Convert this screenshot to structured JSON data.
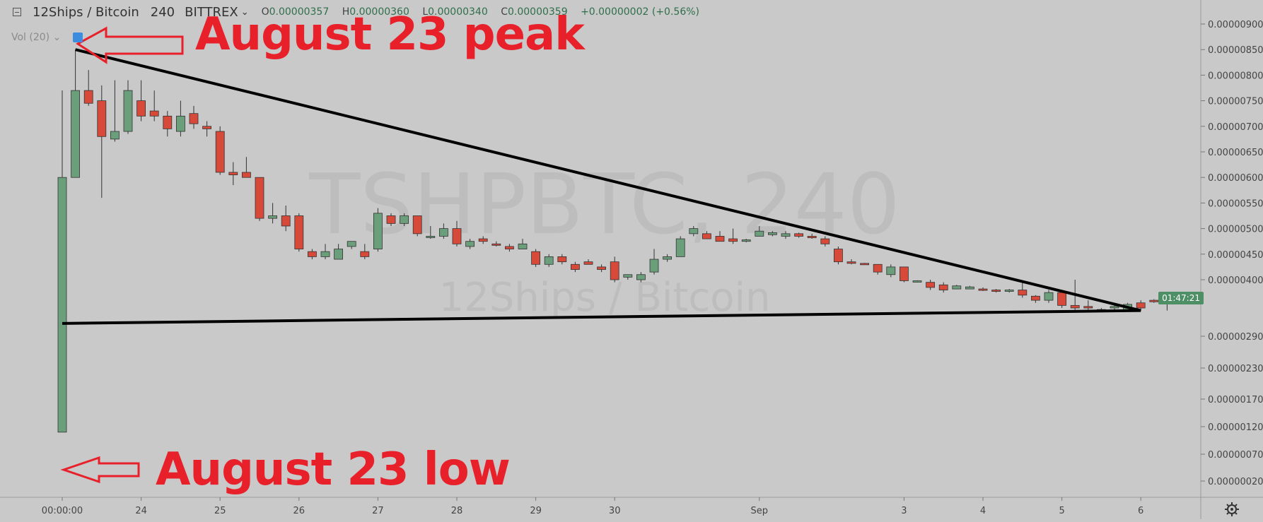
{
  "header": {
    "symbol": "12Ships / Bitcoin",
    "interval": "240",
    "exchange": "BITTREX",
    "ohlc": {
      "open_label": "O",
      "open": "0.00000357",
      "high_label": "H",
      "high": "0.00000360",
      "low_label": "L",
      "low": "0.00000340",
      "close_label": "C",
      "close": "0.00000359",
      "change": "+0.00000002 (+0.56%)"
    },
    "volume_label": "Vol (20)"
  },
  "watermark": {
    "ticker": "TSHPBTC, 240",
    "name": "12Ships / Bitcoin"
  },
  "annotations": {
    "peak": "August 23 peak",
    "low": "August 23 low"
  },
  "countdown": "01:47:21",
  "colors": {
    "up": "#6b9f7b",
    "down": "#d74a3a",
    "background": "#c9c9c9",
    "annotation": "#e8202a",
    "trendline": "#000000"
  },
  "icons": {
    "settings": "gear-icon",
    "collapse": "minus-box-icon"
  },
  "chart_data": {
    "type": "candlestick",
    "title": "",
    "x_tick_labels": [
      "00:00:00",
      "24",
      "25",
      "26",
      "27",
      "28",
      "29",
      "30",
      "Sep",
      "3",
      "4",
      "5",
      "6"
    ],
    "x_tick_candle_index": [
      0,
      6,
      12,
      18,
      24,
      30,
      36,
      42,
      53,
      64,
      70,
      76,
      82
    ],
    "y_tick_labels": [
      "0.00000900",
      "0.00000850",
      "0.00000800",
      "0.00000750",
      "0.00000700",
      "0.00000650",
      "0.00000600",
      "0.00000550",
      "0.00000500",
      "0.00000450",
      "0.00000400",
      "0.00000290",
      "0.00000230",
      "0.00000170",
      "0.00000120",
      "0.00000070",
      "0.00000020"
    ],
    "y_tick_values": [
      9.0,
      8.5,
      8.0,
      7.5,
      7.0,
      6.5,
      6.0,
      5.5,
      5.0,
      4.5,
      4.0,
      2.9,
      2.3,
      1.7,
      1.2,
      0.7,
      0.2
    ],
    "value_unit": "1e-8 BTC (satoshi)",
    "candles": [
      {
        "o": 1.1,
        "h": 7.7,
        "l": 1.1,
        "c": 6.0
      },
      {
        "o": 6.0,
        "h": 8.5,
        "l": 6.0,
        "c": 7.7
      },
      {
        "o": 7.7,
        "h": 8.1,
        "l": 7.4,
        "c": 7.45
      },
      {
        "o": 7.5,
        "h": 7.8,
        "l": 5.6,
        "c": 6.8
      },
      {
        "o": 6.75,
        "h": 7.9,
        "l": 6.7,
        "c": 6.9
      },
      {
        "o": 6.9,
        "h": 7.9,
        "l": 6.85,
        "c": 7.7
      },
      {
        "o": 7.5,
        "h": 7.9,
        "l": 7.1,
        "c": 7.2
      },
      {
        "o": 7.3,
        "h": 7.7,
        "l": 7.1,
        "c": 7.2
      },
      {
        "o": 7.2,
        "h": 7.3,
        "l": 6.8,
        "c": 6.95
      },
      {
        "o": 6.9,
        "h": 7.5,
        "l": 6.8,
        "c": 7.2
      },
      {
        "o": 7.25,
        "h": 7.4,
        "l": 6.95,
        "c": 7.05
      },
      {
        "o": 7.0,
        "h": 7.1,
        "l": 6.8,
        "c": 6.95
      },
      {
        "o": 6.9,
        "h": 7.0,
        "l": 6.05,
        "c": 6.1
      },
      {
        "o": 6.1,
        "h": 6.3,
        "l": 5.85,
        "c": 6.05
      },
      {
        "o": 6.1,
        "h": 6.4,
        "l": 6.0,
        "c": 6.0
      },
      {
        "o": 6.0,
        "h": 6.0,
        "l": 5.15,
        "c": 5.2
      },
      {
        "o": 5.2,
        "h": 5.5,
        "l": 5.1,
        "c": 5.25
      },
      {
        "o": 5.25,
        "h": 5.45,
        "l": 4.95,
        "c": 5.05
      },
      {
        "o": 5.25,
        "h": 5.3,
        "l": 4.55,
        "c": 4.6
      },
      {
        "o": 4.55,
        "h": 4.6,
        "l": 4.4,
        "c": 4.45
      },
      {
        "o": 4.45,
        "h": 4.7,
        "l": 4.4,
        "c": 4.55
      },
      {
        "o": 4.4,
        "h": 4.7,
        "l": 4.4,
        "c": 4.6
      },
      {
        "o": 4.65,
        "h": 4.75,
        "l": 4.6,
        "c": 4.75
      },
      {
        "o": 4.55,
        "h": 4.7,
        "l": 4.4,
        "c": 4.45
      },
      {
        "o": 4.6,
        "h": 5.4,
        "l": 4.55,
        "c": 5.3
      },
      {
        "o": 5.25,
        "h": 5.3,
        "l": 5.05,
        "c": 5.1
      },
      {
        "o": 5.1,
        "h": 5.3,
        "l": 5.05,
        "c": 5.25
      },
      {
        "o": 5.25,
        "h": 5.25,
        "l": 4.85,
        "c": 4.9
      },
      {
        "o": 4.85,
        "h": 5.05,
        "l": 4.8,
        "c": 4.85
      },
      {
        "o": 4.85,
        "h": 5.1,
        "l": 4.8,
        "c": 5.0
      },
      {
        "o": 5.0,
        "h": 5.15,
        "l": 4.65,
        "c": 4.7
      },
      {
        "o": 4.65,
        "h": 4.8,
        "l": 4.6,
        "c": 4.75
      },
      {
        "o": 4.8,
        "h": 4.85,
        "l": 4.7,
        "c": 4.75
      },
      {
        "o": 4.7,
        "h": 4.75,
        "l": 4.65,
        "c": 4.68
      },
      {
        "o": 4.65,
        "h": 4.7,
        "l": 4.55,
        "c": 4.6
      },
      {
        "o": 4.6,
        "h": 4.8,
        "l": 4.6,
        "c": 4.7
      },
      {
        "o": 4.55,
        "h": 4.6,
        "l": 4.25,
        "c": 4.3
      },
      {
        "o": 4.3,
        "h": 4.5,
        "l": 4.25,
        "c": 4.45
      },
      {
        "o": 4.45,
        "h": 4.5,
        "l": 4.3,
        "c": 4.35
      },
      {
        "o": 4.3,
        "h": 4.35,
        "l": 4.15,
        "c": 4.2
      },
      {
        "o": 4.35,
        "h": 4.4,
        "l": 4.3,
        "c": 4.3
      },
      {
        "o": 4.25,
        "h": 4.3,
        "l": 4.15,
        "c": 4.2
      },
      {
        "o": 4.35,
        "h": 4.45,
        "l": 3.95,
        "c": 4.0
      },
      {
        "o": 4.05,
        "h": 4.1,
        "l": 4.0,
        "c": 4.1
      },
      {
        "o": 4.0,
        "h": 4.15,
        "l": 3.95,
        "c": 4.1
      },
      {
        "o": 4.15,
        "h": 4.6,
        "l": 4.1,
        "c": 4.4
      },
      {
        "o": 4.4,
        "h": 4.5,
        "l": 4.35,
        "c": 4.45
      },
      {
        "o": 4.45,
        "h": 4.85,
        "l": 4.45,
        "c": 4.8
      },
      {
        "o": 4.9,
        "h": 5.05,
        "l": 4.85,
        "c": 5.0
      },
      {
        "o": 4.9,
        "h": 4.95,
        "l": 4.8,
        "c": 4.8
      },
      {
        "o": 4.85,
        "h": 4.95,
        "l": 4.75,
        "c": 4.75
      },
      {
        "o": 4.8,
        "h": 5.0,
        "l": 4.7,
        "c": 4.75
      },
      {
        "o": 4.75,
        "h": 4.8,
        "l": 4.73,
        "c": 4.78
      },
      {
        "o": 4.85,
        "h": 5.05,
        "l": 4.85,
        "c": 4.95
      },
      {
        "o": 4.88,
        "h": 4.95,
        "l": 4.85,
        "c": 4.92
      },
      {
        "o": 4.85,
        "h": 4.95,
        "l": 4.8,
        "c": 4.9
      },
      {
        "o": 4.9,
        "h": 4.92,
        "l": 4.82,
        "c": 4.85
      },
      {
        "o": 4.85,
        "h": 4.9,
        "l": 4.8,
        "c": 4.82
      },
      {
        "o": 4.8,
        "h": 4.85,
        "l": 4.65,
        "c": 4.7
      },
      {
        "o": 4.6,
        "h": 4.65,
        "l": 4.3,
        "c": 4.35
      },
      {
        "o": 4.35,
        "h": 4.4,
        "l": 4.3,
        "c": 4.32
      },
      {
        "o": 4.32,
        "h": 4.33,
        "l": 4.3,
        "c": 4.31
      },
      {
        "o": 4.3,
        "h": 4.3,
        "l": 4.1,
        "c": 4.15
      },
      {
        "o": 4.1,
        "h": 4.3,
        "l": 4.05,
        "c": 4.25
      },
      {
        "o": 4.25,
        "h": 4.25,
        "l": 3.95,
        "c": 3.98
      },
      {
        "o": 3.97,
        "h": 3.99,
        "l": 3.96,
        "c": 3.98
      },
      {
        "o": 3.95,
        "h": 4.0,
        "l": 3.8,
        "c": 3.85
      },
      {
        "o": 3.9,
        "h": 3.95,
        "l": 3.75,
        "c": 3.8
      },
      {
        "o": 3.82,
        "h": 3.9,
        "l": 3.82,
        "c": 3.88
      },
      {
        "o": 3.82,
        "h": 3.88,
        "l": 3.82,
        "c": 3.86
      },
      {
        "o": 3.82,
        "h": 3.85,
        "l": 3.78,
        "c": 3.8
      },
      {
        "o": 3.8,
        "h": 3.82,
        "l": 3.75,
        "c": 3.79
      },
      {
        "o": 3.78,
        "h": 3.82,
        "l": 3.75,
        "c": 3.8
      },
      {
        "o": 3.8,
        "h": 3.95,
        "l": 3.65,
        "c": 3.7
      },
      {
        "o": 3.68,
        "h": 3.7,
        "l": 3.55,
        "c": 3.6
      },
      {
        "o": 3.6,
        "h": 3.8,
        "l": 3.55,
        "c": 3.75
      },
      {
        "o": 3.75,
        "h": 3.8,
        "l": 3.45,
        "c": 3.5
      },
      {
        "o": 3.5,
        "h": 4.0,
        "l": 3.4,
        "c": 3.45
      },
      {
        "o": 3.48,
        "h": 3.6,
        "l": 3.4,
        "c": 3.45
      },
      {
        "o": 3.42,
        "h": 3.45,
        "l": 3.38,
        "c": 3.4
      },
      {
        "o": 3.45,
        "h": 3.5,
        "l": 3.4,
        "c": 3.48
      },
      {
        "o": 3.4,
        "h": 3.55,
        "l": 3.38,
        "c": 3.52
      },
      {
        "o": 3.55,
        "h": 3.6,
        "l": 3.4,
        "c": 3.45
      },
      {
        "o": 3.6,
        "h": 3.62,
        "l": 3.55,
        "c": 3.57
      },
      {
        "o": 3.57,
        "h": 3.6,
        "l": 3.4,
        "c": 3.59
      }
    ],
    "trendlines": [
      {
        "name": "",
        "from": {
          "candle": 1,
          "price": 8.5
        },
        "to": {
          "candle": 82,
          "price": 3.4
        }
      },
      {
        "name": "",
        "from": {
          "candle": 0,
          "price": 3.15
        },
        "to": {
          "candle": 82,
          "price": 3.4
        }
      }
    ],
    "last_price_label": "01:47:21",
    "grid": false,
    "legend": "none"
  }
}
